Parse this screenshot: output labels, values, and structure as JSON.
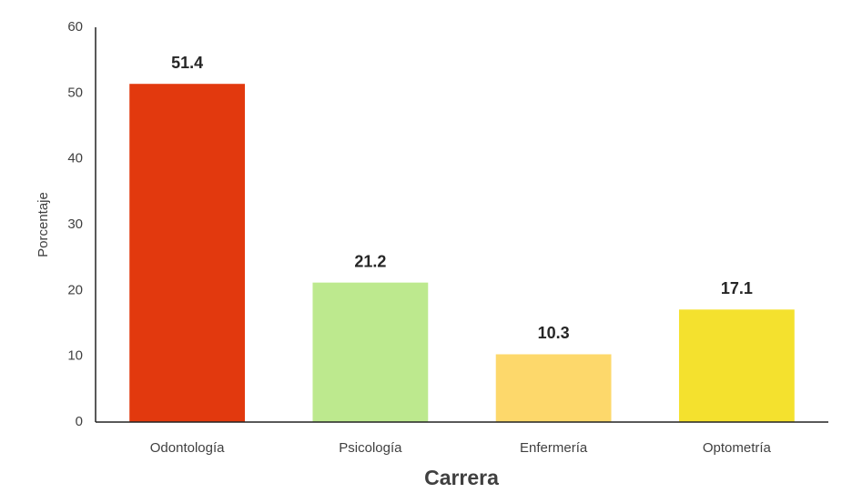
{
  "chart_data": {
    "type": "bar",
    "categories": [
      "Odontología",
      "Psicología",
      "Enfermería",
      "Optometría"
    ],
    "values": [
      51.4,
      21.2,
      10.3,
      17.1
    ],
    "colors": [
      "#e2390e",
      "#bde98e",
      "#fdd86b",
      "#f4e12e"
    ],
    "ylim": [
      0,
      60
    ],
    "yticks": [
      0,
      10,
      20,
      30,
      40,
      50,
      60
    ],
    "xlabel": "Carrera",
    "ylabel": "Porcentaje",
    "grid": false
  }
}
